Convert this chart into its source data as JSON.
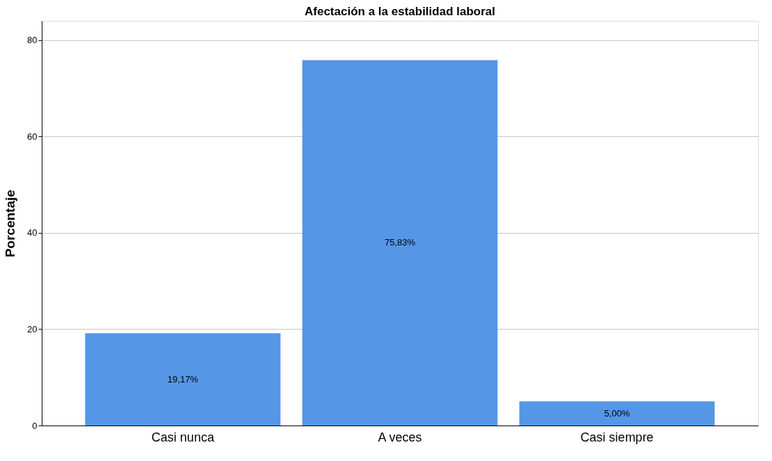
{
  "chart_data": {
    "type": "bar",
    "title": "Afectación a la estabilidad laboral",
    "ylabel": "Porcentaje",
    "categories": [
      "Casi nunca",
      "A veces",
      "Casi siempre"
    ],
    "values": [
      19.17,
      75.83,
      5.0
    ],
    "color": "#5596e6",
    "value_labels": [
      "19,17%",
      "75,83%",
      "5,00%"
    ],
    "ylim": [
      0,
      84
    ],
    "yticks": [
      0,
      20,
      40,
      60,
      80
    ],
    "grid": "y"
  }
}
